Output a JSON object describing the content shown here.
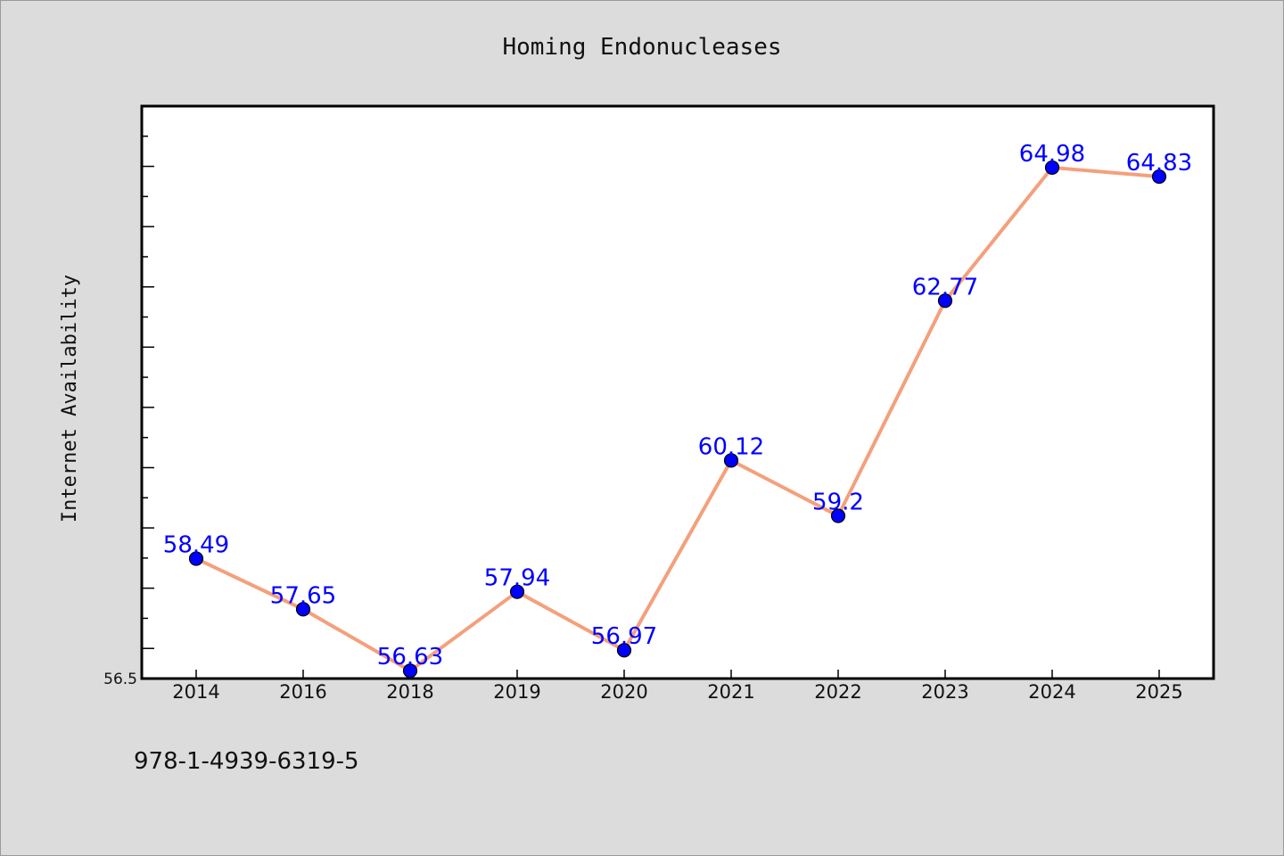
{
  "chart_data": {
    "type": "line",
    "title": "Homing Endonucleases",
    "xlabel": "",
    "ylabel": "Internet Availability",
    "categories": [
      "2014",
      "2016",
      "2018",
      "2019",
      "2020",
      "2021",
      "2022",
      "2023",
      "2024",
      "2025"
    ],
    "series": [
      {
        "values": [
          58.49,
          57.65,
          56.63,
          57.94,
          56.97,
          60.12,
          59.2,
          62.77,
          64.98,
          64.83
        ],
        "data_labels": [
          "58.49",
          "57.65",
          "56.63",
          "57.94",
          "56.97",
          "60.12",
          "59.2",
          "62.77",
          "64.98",
          "64.83"
        ]
      }
    ],
    "y_tick_labels": [
      "56.5"
    ],
    "ylim": [
      56.5,
      66.0
    ],
    "grid": false,
    "legend": "none",
    "colors": {
      "line": "#f4a07c",
      "marker": "#0000ff",
      "data_label": "#0000ff",
      "plot_background": "#ffffff",
      "figure_background": "#dcdcdc"
    }
  },
  "footer": {
    "isbn": "978-1-4939-6319-5"
  }
}
